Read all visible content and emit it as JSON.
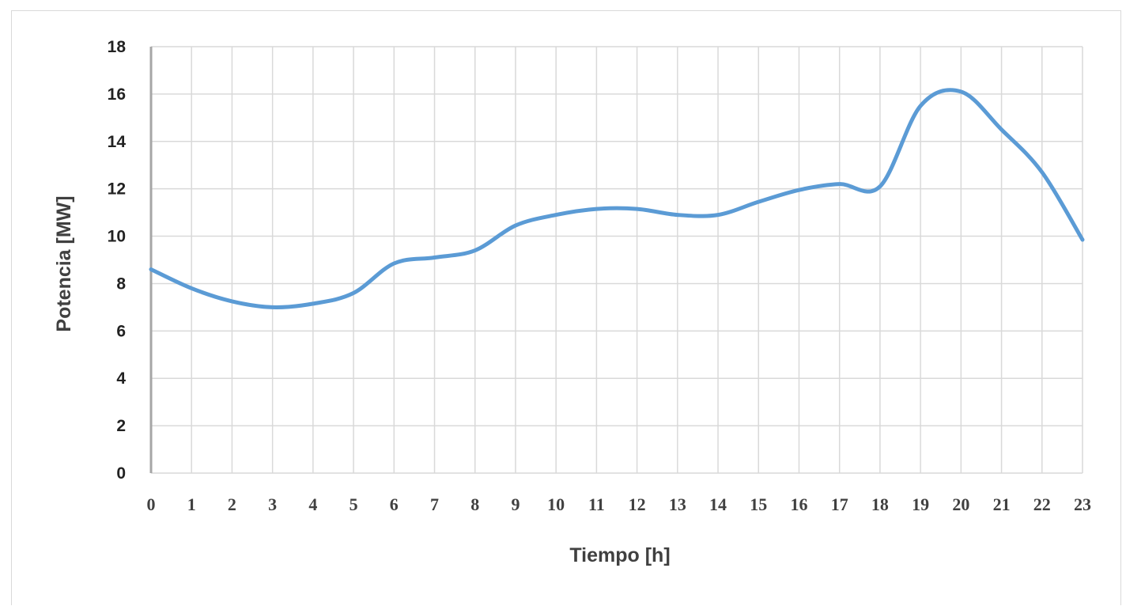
{
  "chart_data": {
    "type": "line",
    "title": "",
    "xlabel": "Tiempo [h]",
    "ylabel": "Potencia [MW]",
    "x": [
      0,
      1,
      2,
      3,
      4,
      5,
      6,
      7,
      8,
      9,
      10,
      11,
      12,
      13,
      14,
      15,
      16,
      17,
      18,
      19,
      20,
      21,
      22,
      23
    ],
    "x_tick_labels": [
      "0",
      "1",
      "2",
      "3",
      "4",
      "5",
      "6",
      "7",
      "8",
      "9",
      "10",
      "11",
      "12",
      "13",
      "14",
      "15",
      "16",
      "17",
      "18",
      "19",
      "20",
      "21",
      "22",
      "23"
    ],
    "y_ticks": [
      0,
      2,
      4,
      6,
      8,
      10,
      12,
      14,
      16,
      18
    ],
    "ylim": [
      0,
      18
    ],
    "xlim": [
      0,
      23
    ],
    "grid": true,
    "legend": "none",
    "series": [
      {
        "values": [
          8.6,
          7.8,
          7.25,
          7.0,
          7.15,
          7.6,
          8.85,
          9.1,
          9.4,
          10.45,
          10.9,
          11.15,
          11.15,
          10.9,
          10.9,
          11.45,
          11.95,
          12.2,
          12.1,
          15.5,
          16.1,
          14.5,
          12.7,
          9.85
        ],
        "color": "#5b9bd5"
      }
    ],
    "colors": {
      "line": "#5b9bd5",
      "grid": "#d9d9d9",
      "axis": "#a6a6a6",
      "text": "#404040"
    }
  }
}
